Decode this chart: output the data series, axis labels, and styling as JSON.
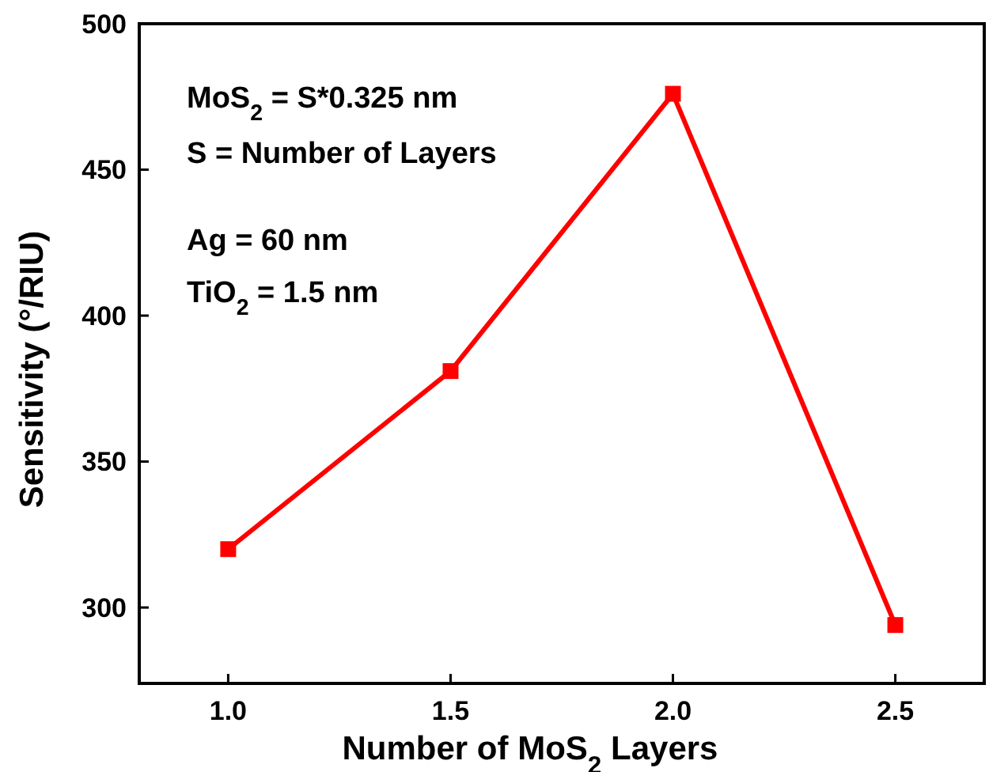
{
  "chart_data": {
    "type": "line",
    "xlabel": "Number of MoS$_{2}$ Layers",
    "ylabel": "Sensitivity (°/RIU)",
    "annotations": [
      "MoS$_{2}$ = S*0.325 nm",
      "S = Number of Layers",
      "Ag = 60 nm",
      "TiO$_{2}$ = 1.5 nm"
    ],
    "x": [
      1.0,
      1.5,
      2.0,
      2.5
    ],
    "series": [
      {
        "color": "#ff0000",
        "values": [
          320,
          381,
          476,
          294
        ]
      }
    ],
    "xlim": [
      0.8,
      2.7
    ],
    "ylim": [
      274,
      500
    ],
    "xticks": [
      {
        "value": 1,
        "label": "1.0"
      },
      {
        "value": 1.5,
        "label": "1.5"
      },
      {
        "value": 2,
        "label": "2.0"
      },
      {
        "value": 2.5,
        "label": "2.5"
      }
    ],
    "yticks": [
      300,
      350,
      400,
      450,
      500
    ],
    "marker": "square",
    "line_style": "solid"
  }
}
